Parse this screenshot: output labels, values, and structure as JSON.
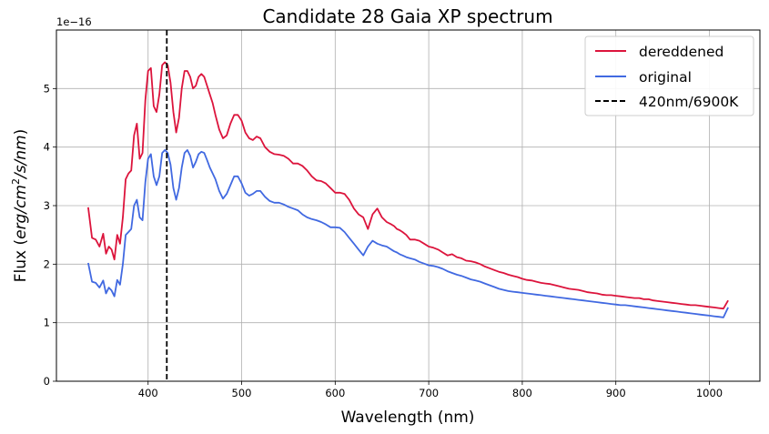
{
  "chart_data": {
    "type": "line",
    "title": "Candidate 28 Gaia XP spectrum",
    "xlabel": "Wavelength (nm)",
    "ylabel_prefix": "Flux (",
    "ylabel_math": "erg/cm",
    "ylabel_sup": "2",
    "ylabel_math2": "/s/nm",
    "ylabel_suffix": ")",
    "y_offset_label": "1e−16",
    "xlim": [
      302,
      1054
    ],
    "ylim": [
      0,
      6.0
    ],
    "xticks": [
      400,
      500,
      600,
      700,
      800,
      900,
      1000
    ],
    "xtick_labels": [
      "400",
      "500",
      "600",
      "700",
      "800",
      "900",
      "1000"
    ],
    "yticks": [
      0,
      1,
      2,
      3,
      4,
      5
    ],
    "ytick_labels": [
      "0",
      "1",
      "2",
      "3",
      "4",
      "5"
    ],
    "grid": true,
    "legend_position": "top-right",
    "series": [
      {
        "name": "dereddened",
        "color": "#dc143c",
        "x": [
          336,
          340,
          344,
          348,
          352,
          355,
          358,
          361,
          364,
          367,
          370,
          373,
          376,
          379,
          382,
          385,
          388,
          391,
          394,
          397,
          400,
          403,
          406,
          409,
          412,
          415,
          418,
          421,
          424,
          427,
          430,
          433,
          436,
          439,
          442,
          445,
          448,
          451,
          454,
          457,
          460,
          463,
          466,
          469,
          472,
          476,
          480,
          484,
          488,
          492,
          496,
          500,
          504,
          508,
          512,
          516,
          520,
          525,
          530,
          535,
          540,
          545,
          550,
          555,
          560,
          565,
          570,
          575,
          580,
          585,
          590,
          595,
          600,
          605,
          610,
          615,
          620,
          625,
          630,
          635,
          640,
          645,
          650,
          655,
          660,
          663,
          666,
          669,
          672,
          676,
          680,
          685,
          690,
          695,
          700,
          705,
          710,
          715,
          720,
          725,
          730,
          735,
          740,
          745,
          750,
          755,
          760,
          765,
          770,
          775,
          780,
          785,
          790,
          795,
          800,
          805,
          810,
          815,
          820,
          825,
          830,
          835,
          840,
          845,
          850,
          855,
          860,
          865,
          870,
          875,
          880,
          885,
          890,
          895,
          900,
          905,
          910,
          915,
          920,
          925,
          930,
          935,
          940,
          945,
          950,
          955,
          960,
          965,
          970,
          975,
          980,
          985,
          990,
          995,
          1000,
          1005,
          1010,
          1015,
          1020
        ],
        "y": [
          2.97,
          2.45,
          2.42,
          2.3,
          2.52,
          2.18,
          2.3,
          2.25,
          2.08,
          2.5,
          2.35,
          2.8,
          3.45,
          3.55,
          3.6,
          4.2,
          4.4,
          3.8,
          3.9,
          4.8,
          5.3,
          5.35,
          4.7,
          4.6,
          4.9,
          5.4,
          5.45,
          5.4,
          5.1,
          4.6,
          4.25,
          4.5,
          5.0,
          5.3,
          5.3,
          5.2,
          5.0,
          5.05,
          5.2,
          5.25,
          5.2,
          5.05,
          4.9,
          4.75,
          4.55,
          4.3,
          4.15,
          4.2,
          4.4,
          4.55,
          4.55,
          4.45,
          4.25,
          4.15,
          4.12,
          4.18,
          4.15,
          4.0,
          3.92,
          3.88,
          3.87,
          3.85,
          3.8,
          3.72,
          3.72,
          3.68,
          3.6,
          3.5,
          3.43,
          3.42,
          3.38,
          3.3,
          3.22,
          3.22,
          3.2,
          3.1,
          2.95,
          2.85,
          2.8,
          2.6,
          2.85,
          2.95,
          2.8,
          2.72,
          2.68,
          2.65,
          2.6,
          2.58,
          2.55,
          2.5,
          2.42,
          2.42,
          2.4,
          2.35,
          2.3,
          2.28,
          2.25,
          2.2,
          2.15,
          2.17,
          2.12,
          2.1,
          2.06,
          2.05,
          2.03,
          2.0,
          1.96,
          1.93,
          1.9,
          1.87,
          1.85,
          1.82,
          1.8,
          1.78,
          1.75,
          1.73,
          1.72,
          1.7,
          1.68,
          1.67,
          1.66,
          1.64,
          1.62,
          1.6,
          1.58,
          1.57,
          1.56,
          1.54,
          1.52,
          1.51,
          1.5,
          1.48,
          1.47,
          1.47,
          1.46,
          1.45,
          1.44,
          1.43,
          1.42,
          1.42,
          1.4,
          1.4,
          1.38,
          1.37,
          1.36,
          1.35,
          1.34,
          1.33,
          1.32,
          1.31,
          1.3,
          1.3,
          1.29,
          1.28,
          1.27,
          1.26,
          1.25,
          1.24,
          1.38
        ]
      },
      {
        "name": "original",
        "color": "#4169e1",
        "x": [
          336,
          340,
          344,
          348,
          352,
          355,
          358,
          361,
          364,
          367,
          370,
          373,
          376,
          379,
          382,
          385,
          388,
          391,
          394,
          397,
          400,
          403,
          406,
          409,
          412,
          415,
          418,
          421,
          424,
          427,
          430,
          433,
          436,
          439,
          442,
          445,
          448,
          451,
          454,
          457,
          460,
          463,
          466,
          469,
          472,
          476,
          480,
          484,
          488,
          492,
          496,
          500,
          504,
          508,
          512,
          516,
          520,
          525,
          530,
          535,
          540,
          545,
          550,
          555,
          560,
          565,
          570,
          575,
          580,
          585,
          590,
          595,
          600,
          605,
          610,
          615,
          620,
          625,
          630,
          635,
          640,
          645,
          650,
          655,
          660,
          663,
          666,
          669,
          672,
          676,
          680,
          685,
          690,
          695,
          700,
          705,
          710,
          715,
          720,
          725,
          730,
          735,
          740,
          745,
          750,
          755,
          760,
          765,
          770,
          775,
          780,
          785,
          790,
          795,
          800,
          805,
          810,
          815,
          820,
          825,
          830,
          835,
          840,
          845,
          850,
          855,
          860,
          865,
          870,
          875,
          880,
          885,
          890,
          895,
          900,
          905,
          910,
          915,
          920,
          925,
          930,
          935,
          940,
          945,
          950,
          955,
          960,
          965,
          970,
          975,
          980,
          985,
          990,
          995,
          1000,
          1005,
          1010,
          1015,
          1020
        ],
        "y": [
          2.02,
          1.7,
          1.68,
          1.6,
          1.72,
          1.5,
          1.6,
          1.55,
          1.45,
          1.73,
          1.65,
          2.0,
          2.5,
          2.55,
          2.6,
          3.0,
          3.1,
          2.8,
          2.75,
          3.4,
          3.8,
          3.88,
          3.5,
          3.35,
          3.5,
          3.9,
          3.95,
          3.9,
          3.7,
          3.3,
          3.1,
          3.3,
          3.65,
          3.9,
          3.95,
          3.85,
          3.65,
          3.75,
          3.88,
          3.92,
          3.9,
          3.78,
          3.65,
          3.55,
          3.45,
          3.25,
          3.12,
          3.2,
          3.35,
          3.5,
          3.5,
          3.38,
          3.22,
          3.17,
          3.2,
          3.25,
          3.25,
          3.15,
          3.08,
          3.05,
          3.05,
          3.02,
          2.98,
          2.95,
          2.92,
          2.85,
          2.8,
          2.77,
          2.75,
          2.72,
          2.68,
          2.63,
          2.63,
          2.62,
          2.55,
          2.45,
          2.35,
          2.25,
          2.15,
          2.3,
          2.4,
          2.35,
          2.32,
          2.3,
          2.25,
          2.22,
          2.2,
          2.17,
          2.15,
          2.12,
          2.1,
          2.08,
          2.04,
          2.01,
          1.98,
          1.97,
          1.95,
          1.92,
          1.88,
          1.85,
          1.82,
          1.8,
          1.77,
          1.74,
          1.72,
          1.7,
          1.67,
          1.64,
          1.61,
          1.58,
          1.56,
          1.54,
          1.53,
          1.52,
          1.51,
          1.5,
          1.49,
          1.48,
          1.47,
          1.46,
          1.45,
          1.44,
          1.43,
          1.42,
          1.41,
          1.4,
          1.39,
          1.38,
          1.37,
          1.36,
          1.35,
          1.34,
          1.33,
          1.32,
          1.31,
          1.3,
          1.3,
          1.29,
          1.28,
          1.27,
          1.26,
          1.25,
          1.24,
          1.23,
          1.22,
          1.21,
          1.2,
          1.19,
          1.18,
          1.17,
          1.16,
          1.15,
          1.14,
          1.13,
          1.12,
          1.11,
          1.1,
          1.09,
          1.26
        ]
      }
    ],
    "vline": {
      "name": "420nm/6900K",
      "x": 420,
      "color": "#000000",
      "style": "dashed"
    }
  }
}
